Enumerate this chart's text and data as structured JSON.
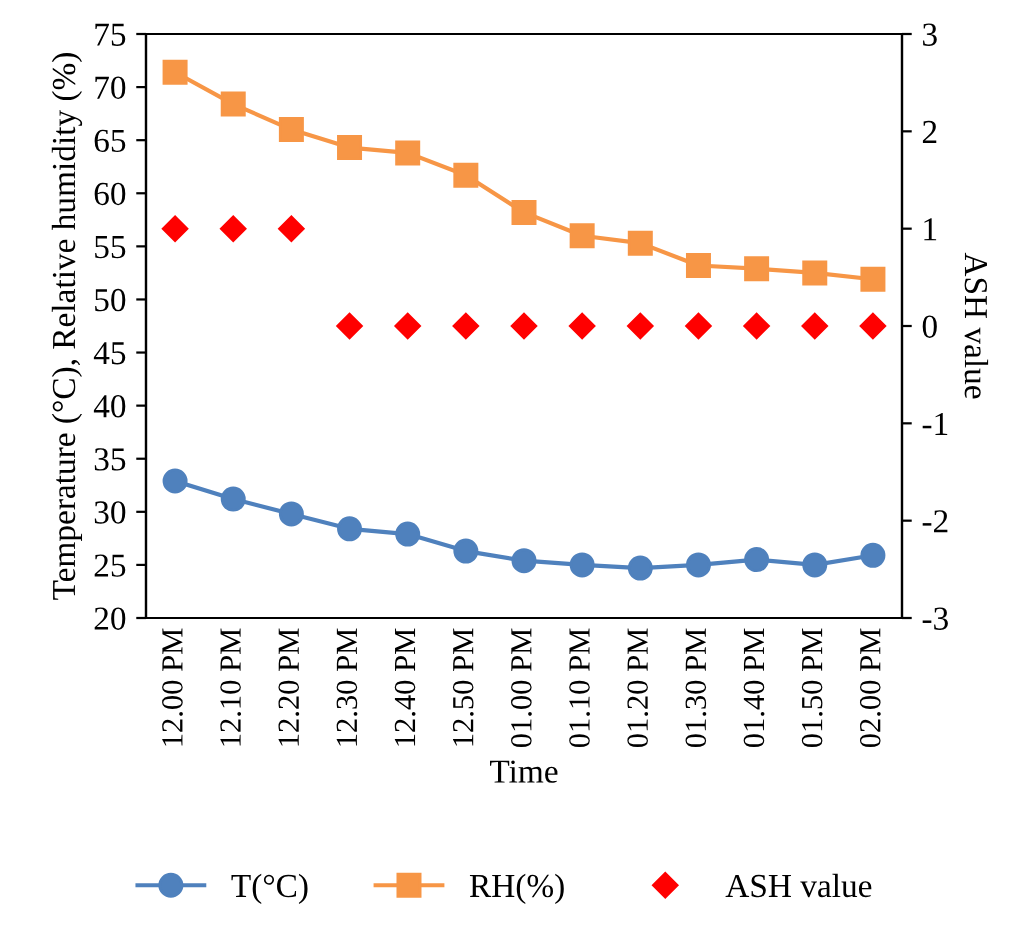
{
  "chart_data": {
    "type": "line",
    "xlabel": "Time",
    "ylabel": "Temperature (°C), Relative humidity (%)",
    "y2label": "ASH value",
    "categories": [
      "12.00 PM",
      "12.10 PM",
      "12.20 PM",
      "12.30 PM",
      "12.40 PM",
      "12.50 PM",
      "01.00 PM",
      "01.10 PM",
      "01.20 PM",
      "01.30 PM",
      "01.40 PM",
      "01.50 PM",
      "02.00 PM"
    ],
    "series": [
      {
        "name": "T(°C)",
        "marker": "circle",
        "color": "#4f81bd",
        "values": [
          32.9,
          31.2,
          29.8,
          28.4,
          27.9,
          26.3,
          25.4,
          25.0,
          24.7,
          25.0,
          25.5,
          25.0,
          25.9
        ]
      },
      {
        "name": "RH(%)",
        "marker": "square",
        "color": "#f79646",
        "values": [
          71.4,
          68.4,
          66.0,
          64.3,
          63.8,
          61.7,
          58.2,
          56.0,
          55.3,
          53.2,
          52.9,
          52.5,
          51.9
        ]
      },
      {
        "name": "ASH value",
        "type": "scatter",
        "marker": "diamond",
        "axis": "y2",
        "color": "#ff0000",
        "values": [
          1,
          1,
          1,
          0,
          0,
          0,
          0,
          0,
          0,
          0,
          0,
          0,
          0
        ]
      }
    ],
    "ylim": [
      20,
      75
    ],
    "yticks": [
      20,
      25,
      30,
      35,
      40,
      45,
      50,
      55,
      60,
      65,
      70,
      75
    ],
    "y2lim": [
      -3,
      3
    ],
    "y2ticks": [
      -3,
      -2,
      -1,
      0,
      1,
      2,
      3
    ],
    "grid": false,
    "legend": "bottom"
  }
}
